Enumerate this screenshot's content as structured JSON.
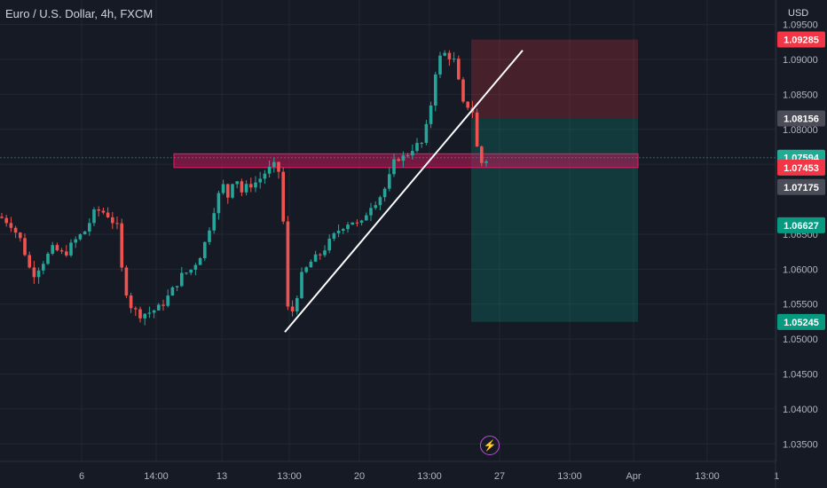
{
  "symbol": {
    "title": "Euro / U.S. Dollar, 4h, FXCM"
  },
  "price_scale": {
    "currency": "USD",
    "ticks": [
      "1.09500",
      "1.09000",
      "1.08500",
      "1.08000",
      "1.07500",
      "1.06500",
      "1.06000",
      "1.05500",
      "1.05000",
      "1.04500",
      "1.04000",
      "1.03500"
    ],
    "badges": [
      {
        "label": "1.09285",
        "color": "#f23645"
      },
      {
        "label": "1.08156",
        "color": "#4a4d57"
      },
      {
        "label": "1.07594",
        "color": "#22ab94"
      },
      {
        "label": "1.07453",
        "color": "#f23645"
      },
      {
        "label": "1.07175",
        "color": "#4a4d57"
      },
      {
        "label": "1.06627",
        "color": "#089981"
      },
      {
        "label": "1.05245",
        "color": "#089981"
      }
    ]
  },
  "time_axis": {
    "ticks": [
      "6",
      "14:00",
      "13",
      "13:00",
      "20",
      "13:00",
      "27",
      "13:00",
      "Apr",
      "13:00",
      "1"
    ]
  },
  "colors": {
    "background": "#161a25",
    "grid": "#232733",
    "up": "#26a69a",
    "down": "#ef5350",
    "zone": "#c2185b",
    "stop_zone": "#f23645",
    "target_zone": "#089981",
    "trendline": "#ffffff"
  },
  "chart_data": {
    "type": "candlestick",
    "symbol": "Euro / U.S. Dollar",
    "interval": "4h",
    "source": "FXCM",
    "y_range": [
      1.0325,
      1.0985
    ],
    "close_path": [
      [
        0,
        1.0675
      ],
      [
        12,
        1.0665
      ],
      [
        24,
        1.064
      ],
      [
        36,
        1.059
      ],
      [
        48,
        1.061
      ],
      [
        60,
        1.063
      ],
      [
        72,
        1.062
      ],
      [
        84,
        1.064
      ],
      [
        96,
        1.0655
      ],
      [
        108,
        1.0685
      ],
      [
        120,
        1.068
      ],
      [
        132,
        1.066
      ],
      [
        138,
        1.059
      ],
      [
        146,
        1.055
      ],
      [
        156,
        1.0535
      ],
      [
        168,
        1.0538
      ],
      [
        180,
        1.0545
      ],
      [
        192,
        1.0565
      ],
      [
        204,
        1.059
      ],
      [
        216,
        1.06
      ],
      [
        228,
        1.0625
      ],
      [
        236,
        1.066
      ],
      [
        244,
        1.07
      ],
      [
        252,
        1.072
      ],
      [
        258,
        1.07
      ],
      [
        264,
        1.074
      ],
      [
        272,
        1.071
      ],
      [
        280,
        1.072
      ],
      [
        290,
        1.0725
      ],
      [
        300,
        1.074
      ],
      [
        312,
        1.075
      ],
      [
        318,
        1.072
      ],
      [
        322,
        1.0545
      ],
      [
        330,
        1.054
      ],
      [
        340,
        1.059
      ],
      [
        350,
        1.061
      ],
      [
        360,
        1.062
      ],
      [
        372,
        1.064
      ],
      [
        384,
        1.066
      ],
      [
        396,
        1.067
      ],
      [
        406,
        1.066
      ],
      [
        416,
        1.069
      ],
      [
        426,
        1.07
      ],
      [
        436,
        1.072
      ],
      [
        446,
        1.076
      ],
      [
        456,
        1.076
      ],
      [
        466,
        1.0775
      ],
      [
        476,
        1.078
      ],
      [
        484,
        1.082
      ],
      [
        490,
        1.088
      ],
      [
        498,
        1.091
      ],
      [
        506,
        1.0905
      ],
      [
        514,
        1.0895
      ],
      [
        520,
        1.0835
      ],
      [
        526,
        1.0835
      ],
      [
        532,
        1.083
      ],
      [
        536,
        1.079
      ],
      [
        540,
        1.075
      ],
      [
        546,
        1.0755
      ],
      [
        552,
        1.0759
      ]
    ],
    "trendline": {
      "start": [
        1.051
      ],
      "end": [
        1.0913
      ]
    },
    "supply_zone": [
      1.07453,
      1.0765
    ],
    "position": {
      "entry": 1.08156,
      "stop": 1.09285,
      "target": 1.05245
    },
    "last_price": 1.07594,
    "labels": [
      "1.09285",
      "1.08156",
      "1.07594",
      "1.07453",
      "1.07175",
      "1.06627",
      "1.05245"
    ]
  }
}
